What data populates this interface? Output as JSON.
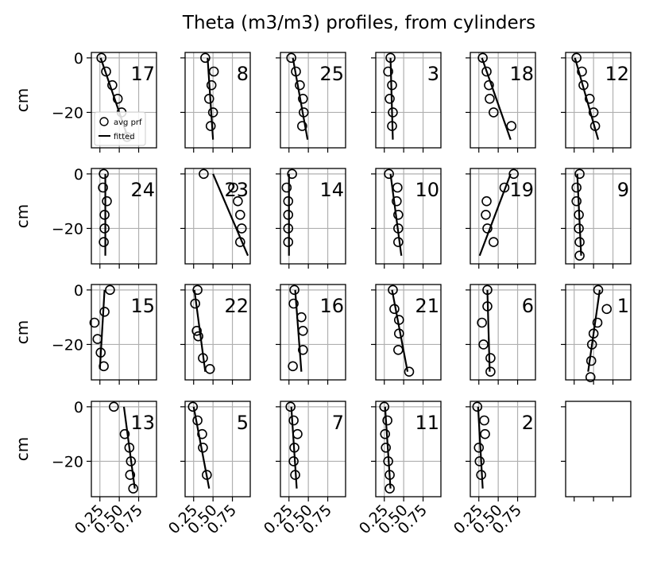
{
  "chart_data": {
    "type": "scatter",
    "title": "Theta (m3/m3) profiles, from cylinders",
    "ylabel": "cm",
    "xlim": [
      0.14,
      0.98
    ],
    "ylim": [
      -33,
      2
    ],
    "xticks": [
      0.25,
      0.5,
      0.75
    ],
    "xtick_labels": [
      "0.25",
      "0.50",
      "0.75"
    ],
    "yticks": [
      0,
      -20
    ],
    "ytick_labels": [
      "0",
      "−20"
    ],
    "grid": true,
    "legend": {
      "placement": "lower-left",
      "panel": "17",
      "entries": [
        "avg prf",
        "fitted"
      ]
    },
    "colors": {
      "label": "#d62728",
      "points": "#000000",
      "line": "#000000",
      "grid": "#b0b0b0"
    },
    "panels": [
      {
        "label": "17",
        "points": [
          [
            0.27,
            0
          ],
          [
            0.33,
            -5
          ],
          [
            0.41,
            -10
          ],
          [
            0.48,
            -15
          ],
          [
            0.53,
            -20
          ],
          [
            0.6,
            -29
          ]
        ],
        "fit": [
          [
            0.26,
            0
          ],
          [
            0.62,
            -30
          ]
        ]
      },
      {
        "label": "8",
        "points": [
          [
            0.4,
            0
          ],
          [
            0.51,
            -5
          ],
          [
            0.48,
            -10
          ],
          [
            0.45,
            -15
          ],
          [
            0.5,
            -20
          ],
          [
            0.47,
            -25
          ]
        ],
        "fit": [
          [
            0.43,
            0
          ],
          [
            0.5,
            -30
          ]
        ]
      },
      {
        "label": "25",
        "points": [
          [
            0.28,
            0
          ],
          [
            0.34,
            -5
          ],
          [
            0.39,
            -10
          ],
          [
            0.43,
            -15
          ],
          [
            0.44,
            -20
          ],
          [
            0.42,
            -25
          ]
        ],
        "fit": [
          [
            0.3,
            0
          ],
          [
            0.49,
            -30
          ]
        ]
      },
      {
        "label": "3",
        "points": [
          [
            0.33,
            0
          ],
          [
            0.3,
            -5
          ],
          [
            0.35,
            -10
          ],
          [
            0.32,
            -15
          ],
          [
            0.36,
            -20
          ],
          [
            0.35,
            -25
          ]
        ],
        "fit": [
          [
            0.33,
            0
          ],
          [
            0.36,
            -30
          ]
        ]
      },
      {
        "label": "18",
        "points": [
          [
            0.3,
            0
          ],
          [
            0.35,
            -5
          ],
          [
            0.38,
            -10
          ],
          [
            0.39,
            -15
          ],
          [
            0.44,
            -20
          ],
          [
            0.67,
            -25
          ]
        ],
        "fit": [
          [
            0.29,
            0
          ],
          [
            0.66,
            -30
          ]
        ]
      },
      {
        "label": "12",
        "points": [
          [
            0.28,
            0
          ],
          [
            0.35,
            -5
          ],
          [
            0.37,
            -10
          ],
          [
            0.45,
            -15
          ],
          [
            0.5,
            -20
          ],
          [
            0.52,
            -25
          ]
        ],
        "fit": [
          [
            0.26,
            0
          ],
          [
            0.56,
            -30
          ]
        ]
      },
      {
        "label": "24",
        "points": [
          [
            0.3,
            0
          ],
          [
            0.29,
            -5
          ],
          [
            0.34,
            -10
          ],
          [
            0.31,
            -15
          ],
          [
            0.31,
            -20
          ],
          [
            0.3,
            -25
          ]
        ],
        "fit": [
          [
            0.32,
            0
          ],
          [
            0.32,
            -30
          ]
        ]
      },
      {
        "label": "23",
        "points": [
          [
            0.38,
            0
          ],
          [
            0.76,
            -5
          ],
          [
            0.82,
            -10
          ],
          [
            0.85,
            -15
          ],
          [
            0.87,
            -20
          ],
          [
            0.85,
            -25
          ]
        ],
        "fit": [
          [
            0.5,
            0
          ],
          [
            0.95,
            -30
          ]
        ]
      },
      {
        "label": "14",
        "points": [
          [
            0.29,
            0
          ],
          [
            0.22,
            -5
          ],
          [
            0.24,
            -10
          ],
          [
            0.24,
            -15
          ],
          [
            0.24,
            -20
          ],
          [
            0.24,
            -25
          ]
        ],
        "fit": [
          [
            0.25,
            0
          ],
          [
            0.25,
            -30
          ]
        ]
      },
      {
        "label": "10",
        "points": [
          [
            0.31,
            0
          ],
          [
            0.42,
            -5
          ],
          [
            0.41,
            -10
          ],
          [
            0.43,
            -15
          ],
          [
            0.43,
            -20
          ],
          [
            0.43,
            -25
          ]
        ],
        "fit": [
          [
            0.33,
            0
          ],
          [
            0.47,
            -30
          ]
        ]
      },
      {
        "label": "19",
        "points": [
          [
            0.7,
            0
          ],
          [
            0.58,
            -5
          ],
          [
            0.35,
            -10
          ],
          [
            0.34,
            -15
          ],
          [
            0.36,
            -20
          ],
          [
            0.44,
            -25
          ]
        ],
        "fit": [
          [
            0.66,
            0
          ],
          [
            0.26,
            -30
          ]
        ]
      },
      {
        "label": "9",
        "points": [
          [
            0.32,
            0
          ],
          [
            0.28,
            -5
          ],
          [
            0.28,
            -10
          ],
          [
            0.31,
            -15
          ],
          [
            0.31,
            -20
          ],
          [
            0.32,
            -25
          ],
          [
            0.32,
            -30
          ]
        ],
        "fit": [
          [
            0.29,
            0
          ],
          [
            0.34,
            -30
          ]
        ]
      },
      {
        "label": "15",
        "points": [
          [
            0.38,
            0
          ],
          [
            0.18,
            -12
          ],
          [
            0.22,
            -18
          ],
          [
            0.26,
            -23
          ],
          [
            0.3,
            -28
          ],
          [
            0.31,
            -8
          ]
        ],
        "fit": [
          [
            0.31,
            0
          ],
          [
            0.25,
            -29
          ]
        ]
      },
      {
        "label": "22",
        "points": [
          [
            0.3,
            0
          ],
          [
            0.27,
            -5
          ],
          [
            0.29,
            -15
          ],
          [
            0.31,
            -17
          ],
          [
            0.37,
            -25
          ],
          [
            0.46,
            -29
          ]
        ],
        "fit": [
          [
            0.26,
            0
          ],
          [
            0.4,
            -30
          ]
        ]
      },
      {
        "label": "16",
        "points": [
          [
            0.32,
            0
          ],
          [
            0.31,
            -5
          ],
          [
            0.41,
            -10
          ],
          [
            0.43,
            -15
          ],
          [
            0.43,
            -22
          ],
          [
            0.3,
            -28
          ]
        ],
        "fit": [
          [
            0.33,
            0
          ],
          [
            0.41,
            -30
          ]
        ]
      },
      {
        "label": "21",
        "points": [
          [
            0.36,
            0
          ],
          [
            0.38,
            -7
          ],
          [
            0.44,
            -11
          ],
          [
            0.44,
            -16
          ],
          [
            0.43,
            -22
          ],
          [
            0.57,
            -30
          ]
        ],
        "fit": [
          [
            0.35,
            0
          ],
          [
            0.55,
            -30
          ]
        ]
      },
      {
        "label": "6",
        "points": [
          [
            0.36,
            0
          ],
          [
            0.36,
            -6
          ],
          [
            0.29,
            -12
          ],
          [
            0.31,
            -20
          ],
          [
            0.4,
            -25
          ],
          [
            0.4,
            -30
          ]
        ],
        "fit": [
          [
            0.36,
            0
          ],
          [
            0.39,
            -30
          ]
        ]
      },
      {
        "label": "1",
        "points": [
          [
            0.56,
            0
          ],
          [
            0.67,
            -7
          ],
          [
            0.55,
            -12
          ],
          [
            0.5,
            -16
          ],
          [
            0.48,
            -20
          ],
          [
            0.47,
            -26
          ],
          [
            0.46,
            -32
          ]
        ],
        "fit": [
          [
            0.58,
            0
          ],
          [
            0.43,
            -30
          ]
        ]
      },
      {
        "label": "13",
        "points": [
          [
            0.43,
            0
          ],
          [
            0.57,
            -10
          ],
          [
            0.63,
            -15
          ],
          [
            0.65,
            -20
          ],
          [
            0.64,
            -25
          ],
          [
            0.68,
            -30
          ]
        ],
        "fit": [
          [
            0.56,
            0
          ],
          [
            0.7,
            -30
          ]
        ]
      },
      {
        "label": "5",
        "points": [
          [
            0.24,
            0
          ],
          [
            0.3,
            -5
          ],
          [
            0.36,
            -10
          ],
          [
            0.37,
            -15
          ],
          [
            0.42,
            -25
          ]
        ],
        "fit": [
          [
            0.25,
            0
          ],
          [
            0.45,
            -30
          ]
        ]
      },
      {
        "label": "7",
        "points": [
          [
            0.27,
            0
          ],
          [
            0.31,
            -5
          ],
          [
            0.36,
            -10
          ],
          [
            0.32,
            -15
          ],
          [
            0.31,
            -20
          ],
          [
            0.33,
            -25
          ]
        ],
        "fit": [
          [
            0.28,
            0
          ],
          [
            0.35,
            -30
          ]
        ]
      },
      {
        "label": "11",
        "points": [
          [
            0.25,
            0
          ],
          [
            0.29,
            -5
          ],
          [
            0.26,
            -10
          ],
          [
            0.27,
            -15
          ],
          [
            0.3,
            -20
          ],
          [
            0.32,
            -25
          ],
          [
            0.32,
            -30
          ]
        ],
        "fit": [
          [
            0.26,
            0
          ],
          [
            0.33,
            -30
          ]
        ]
      },
      {
        "label": "2",
        "points": [
          [
            0.23,
            0
          ],
          [
            0.32,
            -5
          ],
          [
            0.33,
            -10
          ],
          [
            0.25,
            -15
          ],
          [
            0.26,
            -20
          ],
          [
            0.28,
            -25
          ]
        ],
        "fit": [
          [
            0.24,
            0
          ],
          [
            0.3,
            -30
          ]
        ]
      },
      {
        "label": "",
        "points": [],
        "fit": []
      }
    ]
  }
}
